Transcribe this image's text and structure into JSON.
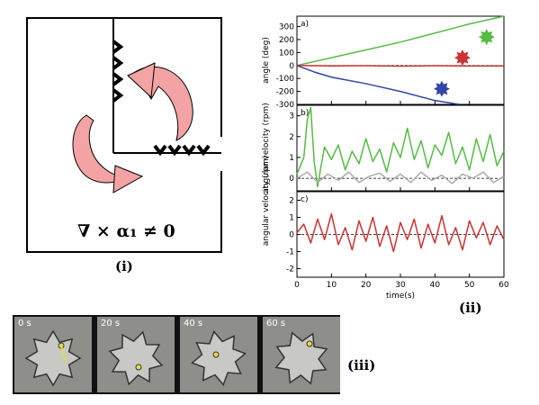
{
  "panels": {
    "i": {
      "label": "(i)",
      "formula": "∇ × α₁ ≠ 0"
    },
    "ii": {
      "label": "(ii)"
    },
    "iii": {
      "label": "(iii)",
      "frames": [
        {
          "time": "0 s"
        },
        {
          "time": "20 s"
        },
        {
          "time": "40 s"
        },
        {
          "time": "60 s"
        }
      ]
    }
  },
  "chart_data": [
    {
      "type": "line",
      "panel_letter": "a)",
      "ylabel": "angle (deg)",
      "xlim": [
        0,
        60
      ],
      "ylim": [
        -300,
        380
      ],
      "yticks": [
        300,
        200,
        100,
        0,
        -100,
        -200,
        -300
      ],
      "series": [
        {
          "color": "#55bb44",
          "x": [
            0,
            5,
            10,
            20,
            30,
            40,
            50,
            60
          ],
          "y": [
            0,
            30,
            60,
            120,
            180,
            250,
            320,
            380
          ]
        },
        {
          "color": "#cc3333",
          "x": [
            0,
            10,
            20,
            30,
            40,
            50,
            60
          ],
          "y": [
            0,
            -3,
            -2,
            -5,
            -2,
            -4,
            -3
          ]
        },
        {
          "color": "#3344aa",
          "x": [
            0,
            5,
            10,
            20,
            30,
            40,
            47
          ],
          "y": [
            0,
            -50,
            -90,
            -140,
            -200,
            -270,
            -300
          ]
        }
      ],
      "markers": [
        {
          "x": 55,
          "y": 220,
          "color": "#55bb44"
        },
        {
          "x": 48,
          "y": 60,
          "color": "#cc3333"
        },
        {
          "x": 42,
          "y": -180,
          "color": "#3344aa"
        }
      ]
    },
    {
      "type": "line",
      "panel_letter": "b)",
      "ylabel": "angular velocity (rpm)",
      "xlim": [
        0,
        60
      ],
      "ylim": [
        -0.6,
        3.5
      ],
      "yticks": [
        3,
        2,
        1,
        0
      ],
      "series": [
        {
          "color": "#55bb44",
          "x": [
            0,
            2,
            3,
            4,
            5,
            6,
            7,
            8,
            10,
            12,
            14,
            16,
            18,
            20,
            22,
            24,
            26,
            28,
            30,
            32,
            34,
            36,
            38,
            40,
            42,
            44,
            46,
            48,
            50,
            52,
            54,
            56,
            58,
            60
          ],
          "y": [
            0.2,
            1.0,
            2.8,
            3.4,
            0.8,
            -0.4,
            0.6,
            1.5,
            0.9,
            1.6,
            0.4,
            1.3,
            0.7,
            1.9,
            0.8,
            1.4,
            0.3,
            1.7,
            1.0,
            2.4,
            0.9,
            1.8,
            0.5,
            1.6,
            1.1,
            2.2,
            0.7,
            1.5,
            0.4,
            1.9,
            0.8,
            2.1,
            0.6,
            1.3
          ]
        },
        {
          "color": "#aaaaaa",
          "x": [
            0,
            3,
            6,
            9,
            12,
            15,
            18,
            21,
            24,
            27,
            30,
            33,
            36,
            39,
            42,
            45,
            48,
            51,
            54,
            57,
            60
          ],
          "y": [
            0.0,
            0.3,
            -0.2,
            0.2,
            -0.1,
            0.3,
            -0.2,
            0.1,
            0.25,
            -0.15,
            0.2,
            -0.2,
            0.3,
            -0.1,
            0.15,
            -0.25,
            0.2,
            0.0,
            0.3,
            -0.2,
            0.1
          ]
        }
      ]
    },
    {
      "type": "line",
      "panel_letter": "c)",
      "ylabel": "angular velocity (rpm)",
      "xlabel": "time(s)",
      "xlim": [
        0,
        60
      ],
      "ylim": [
        -2.5,
        2.5
      ],
      "xticks": [
        0,
        10,
        20,
        30,
        40,
        50,
        60
      ],
      "yticks": [
        2,
        1,
        0,
        -1,
        -2
      ],
      "series": [
        {
          "color": "#cc3333",
          "x": [
            0,
            2,
            4,
            6,
            8,
            10,
            12,
            14,
            16,
            18,
            20,
            22,
            24,
            26,
            28,
            30,
            32,
            34,
            36,
            38,
            40,
            42,
            44,
            46,
            48,
            50,
            52,
            54,
            56,
            58,
            60
          ],
          "y": [
            0.1,
            0.6,
            -0.5,
            0.9,
            -0.3,
            1.2,
            -0.6,
            0.4,
            -0.9,
            0.8,
            -0.4,
            1.0,
            -0.7,
            0.5,
            -1.0,
            0.7,
            -0.3,
            0.9,
            -0.8,
            0.6,
            -0.5,
            1.1,
            -0.6,
            0.4,
            -0.9,
            0.8,
            -0.2,
            0.7,
            -0.6,
            0.5,
            -0.3
          ]
        }
      ]
    }
  ]
}
